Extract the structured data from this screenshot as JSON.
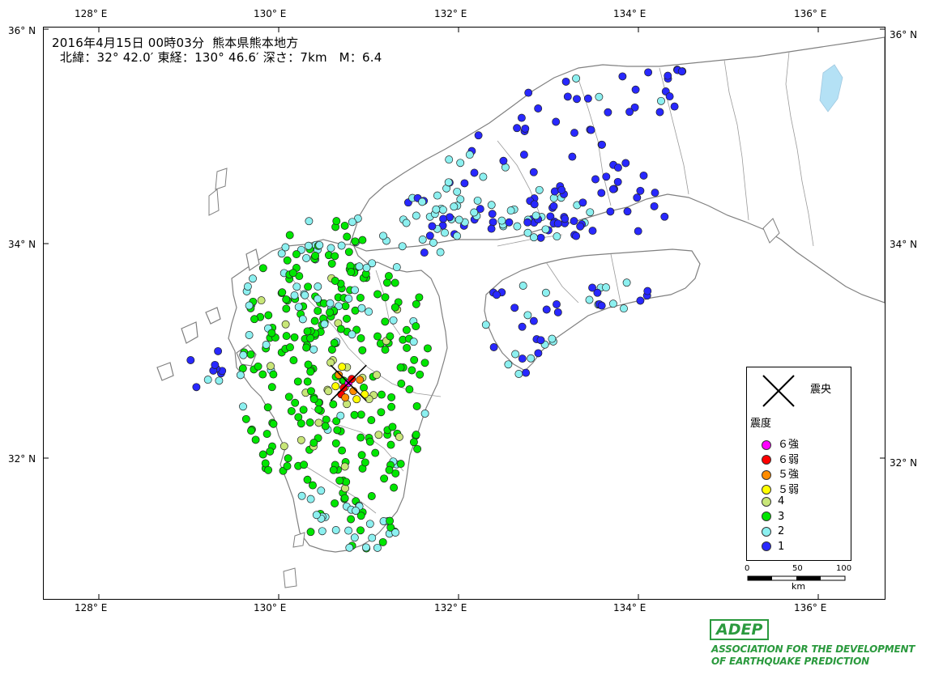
{
  "header": {
    "line1": "2016年4月15日 00時03分  熊本県熊本地方",
    "line2": "  北緯：32° 42.0′ 東経：130° 46.6′ 深さ：7km   M：6.4"
  },
  "axes": {
    "lon_top": [
      "128° E",
      "130° E",
      "132° E",
      "134° E",
      "136° E"
    ],
    "lon_bottom": [
      "128° E",
      "130° E",
      "132° E",
      "134° E",
      "136° E"
    ],
    "lat_left": [
      "36° N",
      "34° N",
      "32° N"
    ],
    "lat_right": [
      "36° N",
      "34° N",
      "32° N"
    ]
  },
  "legend": {
    "epicenter_label": "震央",
    "intensity_title": "震度",
    "items": [
      {
        "label": "６強",
        "color": "#ff00ff",
        "level": "6+"
      },
      {
        "label": "６弱",
        "color": "#ff0000",
        "level": "6-"
      },
      {
        "label": "５強",
        "color": "#ff8c00",
        "level": "5+"
      },
      {
        "label": "５弱",
        "color": "#ffff00",
        "level": "5-"
      },
      {
        "label": "4",
        "color": "#c8e678",
        "level": "4"
      },
      {
        "label": "3",
        "color": "#00e600",
        "level": "3"
      },
      {
        "label": "2",
        "color": "#8cf0f0",
        "level": "2"
      },
      {
        "label": "1",
        "color": "#2828ff",
        "level": "1"
      }
    ]
  },
  "scale": {
    "ticks": [
      "0",
      "50",
      "100"
    ],
    "unit": "km"
  },
  "logo": {
    "name": "ADEP",
    "line1": "ASSOCIATION  FOR THE DEVELOPMENT",
    "line2": "OF EARTHQUAKE PREDICTION"
  },
  "epicenter": {
    "lat": 32.7,
    "lon": 130.777
  }
}
